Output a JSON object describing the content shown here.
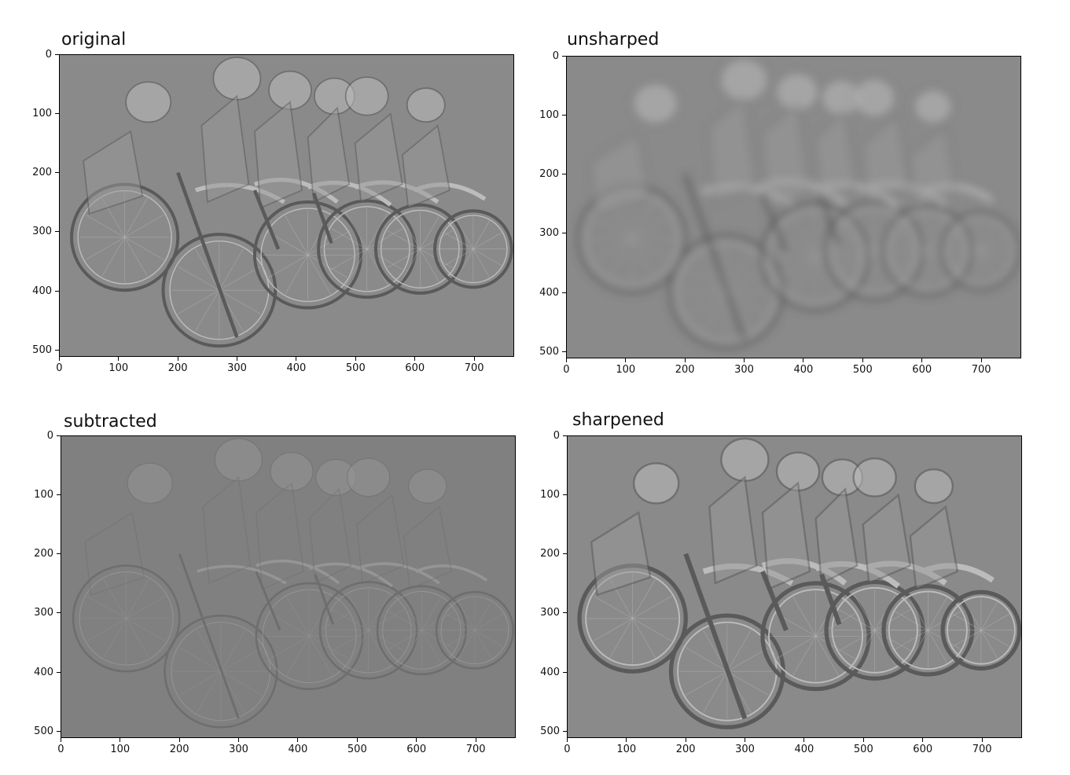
{
  "panels": [
    {
      "id": "original",
      "title": "original",
      "style": "normal"
    },
    {
      "id": "unsharped",
      "title": "unsharped",
      "style": "blur"
    },
    {
      "id": "subtracted",
      "title": "subtracted",
      "style": "emboss"
    },
    {
      "id": "sharpened",
      "title": "sharpened",
      "style": "sharp"
    }
  ],
  "x_ticks": [
    "0",
    "100",
    "200",
    "300",
    "400",
    "500",
    "600",
    "700"
  ],
  "y_ticks": [
    "0",
    "100",
    "200",
    "300",
    "400",
    "500"
  ],
  "colors": {
    "background_gray": "#8a8a8a",
    "subtracted_gray": "#808080",
    "dark_line": "#5a5a5a",
    "light_line": "#bcbcbc"
  }
}
